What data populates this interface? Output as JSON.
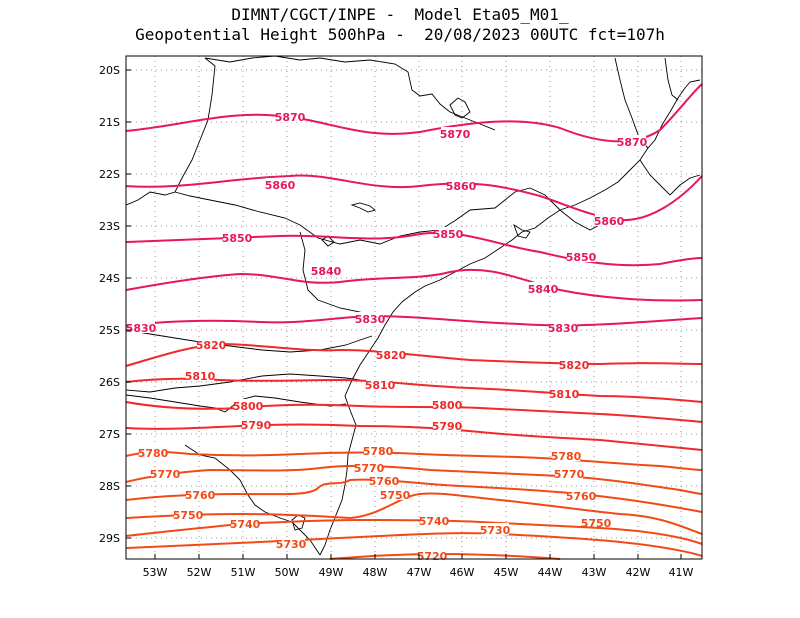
{
  "title": {
    "line1": "DIMNT/CGCT/INPE -  Model Eta05_M01_",
    "line2": "Geopotential Height 500hPa -  20/08/2023 00UTC fct=107h"
  },
  "map": {
    "lat_labels": [
      "20S",
      "21S",
      "22S",
      "23S",
      "24S",
      "25S",
      "26S",
      "27S",
      "28S",
      "29S"
    ],
    "lon_labels": [
      "53W",
      "52W",
      "51W",
      "50W",
      "49W",
      "48W",
      "47W",
      "46W",
      "45W",
      "44W",
      "43W",
      "42W",
      "41W"
    ]
  },
  "colors": {
    "high": "#e6175f",
    "mid": "#ee2a2a",
    "low": "#f24a16",
    "coast": "#000000",
    "grid": "#9a9a9a"
  },
  "contours": [
    {
      "value": "5870",
      "labels": [
        {
          "text": "5870",
          "cls": "high"
        },
        {
          "text": "5870",
          "cls": "high"
        },
        {
          "text": "5870",
          "cls": "high"
        }
      ]
    },
    {
      "value": "5860",
      "labels": [
        {
          "text": "5860",
          "cls": "high"
        },
        {
          "text": "5860",
          "cls": "high"
        },
        {
          "text": "5860",
          "cls": "high"
        }
      ]
    },
    {
      "value": "5850",
      "labels": [
        {
          "text": "5850",
          "cls": "high"
        },
        {
          "text": "5850",
          "cls": "high"
        },
        {
          "text": "5850",
          "cls": "high"
        }
      ]
    },
    {
      "value": "5840",
      "labels": [
        {
          "text": "5840",
          "cls": "high"
        },
        {
          "text": "5840",
          "cls": "high"
        }
      ]
    },
    {
      "value": "5830",
      "labels": [
        {
          "text": "5830",
          "cls": "high"
        },
        {
          "text": "5830",
          "cls": "high"
        },
        {
          "text": "5830",
          "cls": "high"
        }
      ]
    },
    {
      "value": "5820",
      "labels": [
        {
          "text": "5820",
          "cls": "mid"
        },
        {
          "text": "5820",
          "cls": "mid"
        },
        {
          "text": "5820",
          "cls": "mid"
        }
      ]
    },
    {
      "value": "5810",
      "labels": [
        {
          "text": "5810",
          "cls": "mid"
        },
        {
          "text": "5810",
          "cls": "mid"
        },
        {
          "text": "5810",
          "cls": "mid"
        }
      ]
    },
    {
      "value": "5800",
      "labels": [
        {
          "text": "5800",
          "cls": "mid"
        },
        {
          "text": "5800",
          "cls": "mid"
        }
      ]
    },
    {
      "value": "5790",
      "labels": [
        {
          "text": "5790",
          "cls": "mid"
        },
        {
          "text": "5790",
          "cls": "mid"
        }
      ]
    },
    {
      "value": "5780",
      "labels": [
        {
          "text": "5780",
          "cls": "low"
        },
        {
          "text": "5780",
          "cls": "low"
        },
        {
          "text": "5780",
          "cls": "low"
        }
      ]
    },
    {
      "value": "5770",
      "labels": [
        {
          "text": "5770",
          "cls": "low"
        },
        {
          "text": "5770",
          "cls": "low"
        },
        {
          "text": "5770",
          "cls": "low"
        }
      ]
    },
    {
      "value": "5760",
      "labels": [
        {
          "text": "5760",
          "cls": "low"
        },
        {
          "text": "5760",
          "cls": "low"
        },
        {
          "text": "5760",
          "cls": "low"
        }
      ]
    },
    {
      "value": "5750",
      "labels": [
        {
          "text": "5750",
          "cls": "low"
        },
        {
          "text": "5750",
          "cls": "low"
        },
        {
          "text": "5750",
          "cls": "low"
        }
      ]
    },
    {
      "value": "5740",
      "labels": [
        {
          "text": "5740",
          "cls": "low"
        },
        {
          "text": "5740",
          "cls": "low"
        }
      ]
    },
    {
      "value": "5730",
      "labels": [
        {
          "text": "5730",
          "cls": "low"
        },
        {
          "text": "5730",
          "cls": "low"
        }
      ]
    },
    {
      "value": "5720",
      "labels": [
        {
          "text": "5720",
          "cls": "low"
        }
      ]
    }
  ]
}
